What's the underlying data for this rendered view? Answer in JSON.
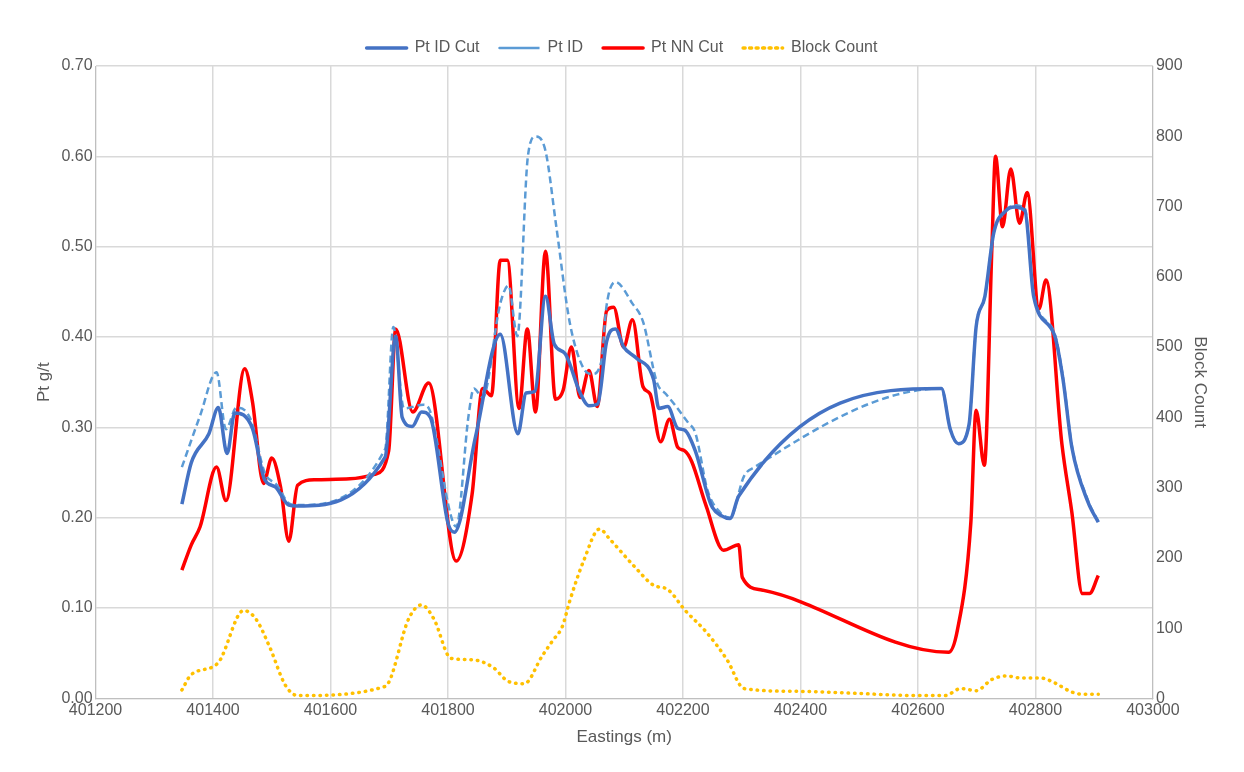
{
  "chart_data": {
    "type": "line",
    "xlabel": "Eastings (m)",
    "ylabel": "Pt g/t",
    "y2label": "Block Count",
    "xlim": [
      401200,
      403000
    ],
    "xticks": [
      401200,
      401400,
      401600,
      401800,
      402000,
      402200,
      402400,
      402600,
      402800,
      403000
    ],
    "ylim": [
      0,
      0.7
    ],
    "yticks": [
      {
        "value": 0,
        "label": "0.00"
      },
      {
        "value": 0.1,
        "label": "0.10"
      },
      {
        "value": 0.2,
        "label": "0.20"
      },
      {
        "value": 0.3,
        "label": "0.30"
      },
      {
        "value": 0.4,
        "label": "0.40"
      },
      {
        "value": 0.5,
        "label": "0.50"
      },
      {
        "value": 0.6,
        "label": "0.60"
      },
      {
        "value": 0.7,
        "label": "0.70"
      }
    ],
    "y2lim": [
      0,
      900
    ],
    "y2ticks": [
      0,
      100,
      200,
      300,
      400,
      500,
      600,
      700,
      800,
      900
    ],
    "grid": true,
    "legend": "top",
    "marker": "none",
    "series": [
      {
        "name": "Pt ID Cut",
        "color": "#4472c4",
        "line_style": "solid",
        "x": [
          401347,
          401363,
          401393,
          401409,
          401424,
          401437,
          401467,
          401488,
          401506,
          401529,
          401543,
          401693,
          401711,
          401722,
          401739,
          401755,
          401770,
          401800,
          401811,
          401847,
          401889,
          401919,
          401933,
          401948,
          401966,
          401981,
          401999,
          402025,
          402040,
          402055,
          402070,
          402085,
          402099,
          402120,
          402150,
          402159,
          402174,
          402191,
          402203,
          402221,
          402248,
          402266,
          402280,
          402295,
          402640,
          402655,
          402669,
          402687,
          402699,
          402714,
          402729,
          402750,
          402764,
          402782,
          402797,
          402833,
          402847,
          402862,
          402889,
          402907
        ],
        "values": [
          0.215,
          0.261,
          0.293,
          0.322,
          0.271,
          0.316,
          0.299,
          0.242,
          0.234,
          0.214,
          0.213,
          0.267,
          0.401,
          0.311,
          0.301,
          0.317,
          0.311,
          0.194,
          0.184,
          0.29,
          0.403,
          0.293,
          0.338,
          0.34,
          0.445,
          0.392,
          0.382,
          0.338,
          0.324,
          0.326,
          0.395,
          0.409,
          0.389,
          0.377,
          0.353,
          0.321,
          0.323,
          0.299,
          0.297,
          0.274,
          0.214,
          0.202,
          0.199,
          0.224,
          0.343,
          0.298,
          0.282,
          0.303,
          0.411,
          0.445,
          0.515,
          0.54,
          0.544,
          0.54,
          0.445,
          0.401,
          0.353,
          0.278,
          0.218,
          0.195
        ]
      },
      {
        "name": "Pt ID",
        "color": "#5b9bd5",
        "line_style": "dashed",
        "x": [
          401347,
          401378,
          401406,
          401422,
          401440,
          401464,
          401488,
          401509,
          401529,
          401543,
          401693,
          401707,
          401725,
          401758,
          401770,
          401805,
          401814,
          401835,
          401844,
          401859,
          401889,
          401903,
          401918,
          401936,
          401949,
          401966,
          401984,
          402007,
          402031,
          402046,
          402061,
          402070,
          402085,
          402114,
          402132,
          402156,
          402171,
          402186,
          402209,
          402221,
          402242,
          402263,
          402280,
          402304,
          402322,
          402640,
          402655,
          402669,
          402687,
          402699,
          402714,
          402729,
          402750,
          402764,
          402782,
          402797,
          402833,
          402847,
          402862,
          402889,
          402907
        ],
        "values": [
          0.256,
          0.313,
          0.361,
          0.298,
          0.322,
          0.309,
          0.25,
          0.236,
          0.216,
          0.214,
          0.276,
          0.411,
          0.321,
          0.325,
          0.317,
          0.202,
          0.19,
          0.313,
          0.343,
          0.333,
          0.437,
          0.457,
          0.401,
          0.6,
          0.622,
          0.606,
          0.524,
          0.417,
          0.365,
          0.359,
          0.373,
          0.435,
          0.461,
          0.437,
          0.417,
          0.349,
          0.337,
          0.325,
          0.305,
          0.294,
          0.23,
          0.206,
          0.2,
          0.246,
          0.256,
          0.343,
          0.298,
          0.282,
          0.303,
          0.411,
          0.445,
          0.515,
          0.54,
          0.546,
          0.542,
          0.447,
          0.403,
          0.355,
          0.28,
          0.22,
          0.196
        ]
      },
      {
        "name": "Pt NN Cut",
        "color": "#ff0000",
        "line_style": "solid",
        "x": [
          401347,
          401363,
          401378,
          401406,
          401422,
          401454,
          401467,
          401486,
          401500,
          401515,
          401529,
          401544,
          401574,
          401633,
          401675,
          401699,
          401711,
          401740,
          401767,
          401814,
          401841,
          401859,
          401874,
          401889,
          401901,
          401921,
          401935,
          401949,
          401966,
          401983,
          401996,
          402010,
          402025,
          402040,
          402054,
          402070,
          402082,
          402099,
          402114,
          402132,
          402144,
          402162,
          402177,
          402191,
          402203,
          402215,
          402239,
          402269,
          402295,
          402301,
          402334,
          402652,
          402667,
          402690,
          402699,
          402713,
          402726,
          402732,
          402744,
          402758,
          402773,
          402786,
          402806,
          402818,
          402845,
          402862,
          402880,
          402892,
          402907
        ],
        "values": [
          0.142,
          0.17,
          0.19,
          0.256,
          0.219,
          0.365,
          0.329,
          0.238,
          0.266,
          0.234,
          0.174,
          0.236,
          0.242,
          0.243,
          0.248,
          0.274,
          0.409,
          0.317,
          0.349,
          0.152,
          0.226,
          0.343,
          0.335,
          0.485,
          0.485,
          0.321,
          0.409,
          0.317,
          0.495,
          0.331,
          0.341,
          0.389,
          0.333,
          0.363,
          0.323,
          0.429,
          0.433,
          0.389,
          0.419,
          0.345,
          0.337,
          0.284,
          0.309,
          0.278,
          0.274,
          0.262,
          0.214,
          0.164,
          0.17,
          0.134,
          0.12,
          0.051,
          0.075,
          0.194,
          0.319,
          0.258,
          0.501,
          0.6,
          0.522,
          0.586,
          0.526,
          0.56,
          0.431,
          0.463,
          0.282,
          0.206,
          0.116,
          0.116,
          0.136
        ]
      },
      {
        "name": "Block Count",
        "color": "#ffc000",
        "line_style": "dotted",
        "axis": "y2",
        "x": [
          401347,
          401363,
          401408,
          401452,
          401473,
          401497,
          401523,
          401544,
          401693,
          401734,
          401755,
          401776,
          401805,
          401841,
          401877,
          401903,
          401930,
          401960,
          401978,
          401995,
          402007,
          402031,
          402058,
          402076,
          402117,
          402150,
          402174,
          402204,
          402239,
          402275,
          402304,
          402400,
          402500,
          402600,
          402646,
          402673,
          402699,
          402726,
          402750,
          402776,
          402809,
          402833,
          402862,
          402880,
          402907
        ],
        "values": [
          12,
          34,
          50,
          125,
          113,
          72,
          19,
          4,
          17,
          115,
          133,
          113,
          57,
          55,
          44,
          24,
          21,
          60,
          82,
          103,
          138,
          196,
          241,
          226,
          188,
          161,
          155,
          125,
          95,
          55,
          14,
          10,
          7,
          4,
          4,
          14,
          11,
          27,
          32,
          29,
          29,
          22,
          9,
          6,
          6
        ]
      }
    ]
  }
}
